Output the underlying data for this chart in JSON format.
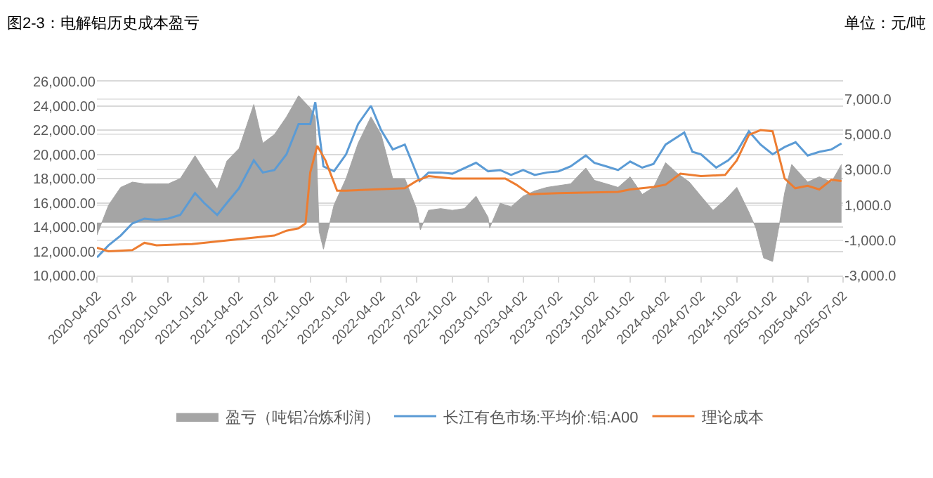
{
  "chart_data": {
    "type": "line",
    "title": "图2-3：电解铝历史成本盈亏",
    "annotations": [
      "单位：元/吨"
    ],
    "xlim": [
      "2020-04-02",
      "2025-07-02"
    ],
    "xticks": [
      "2020-04-02",
      "2020-07-02",
      "2020-10-02",
      "2021-01-02",
      "2021-04-02",
      "2021-07-02",
      "2021-10-02",
      "2022-01-02",
      "2022-04-02",
      "2022-07-02",
      "2022-10-02",
      "2023-01-02",
      "2023-04-02",
      "2023-07-02",
      "2023-10-02",
      "2024-01-02",
      "2024-04-02",
      "2024-07-02",
      "2024-10-02",
      "2025-01-02",
      "2025-04-02",
      "2025-07-02"
    ],
    "ylim": [
      10000,
      26000
    ],
    "yticks": [
      {
        "value": 10000,
        "label": "10,000.00"
      },
      {
        "value": 12000,
        "label": "12,000.00"
      },
      {
        "value": 14000,
        "label": "14,000.00"
      },
      {
        "value": 16000,
        "label": "16,000.00"
      },
      {
        "value": 18000,
        "label": "18,000.00"
      },
      {
        "value": 20000,
        "label": "20,000.00"
      },
      {
        "value": 22000,
        "label": "22,000.00"
      },
      {
        "value": 24000,
        "label": "24,000.00"
      },
      {
        "value": 26000,
        "label": "26,000.00"
      }
    ],
    "y2lim": [
      -3000,
      8000
    ],
    "y2ticks": [
      {
        "value": -3000,
        "label": "-3,000.0"
      },
      {
        "value": -1000,
        "label": "-1,000.0"
      },
      {
        "value": 1000,
        "label": "1,000.0"
      },
      {
        "value": 3000,
        "label": "3,000.0"
      },
      {
        "value": 5000,
        "label": "5,000.0"
      },
      {
        "value": 7000,
        "label": "7,000.0"
      }
    ],
    "grid": "y",
    "legend": "bottom",
    "marker": "none",
    "line_style": "solid",
    "series": [
      {
        "name": "盈亏（吨铝冶炼利润）",
        "type": "area",
        "axis": "y2",
        "color": "#a5a5a5",
        "x": [
          "2020-04-02",
          "2020-05-02",
          "2020-06-02",
          "2020-07-02",
          "2020-08-02",
          "2020-09-02",
          "2020-10-02",
          "2020-11-02",
          "2020-12-10",
          "2021-01-02",
          "2021-02-05",
          "2021-03-02",
          "2021-04-02",
          "2021-05-10",
          "2021-06-02",
          "2021-07-02",
          "2021-08-02",
          "2021-09-02",
          "2021-10-02",
          "2021-10-15",
          "2021-10-25",
          "2021-11-05",
          "2021-12-02",
          "2022-01-02",
          "2022-02-02",
          "2022-03-07",
          "2022-04-02",
          "2022-05-02",
          "2022-06-02",
          "2022-07-02",
          "2022-07-12",
          "2022-08-02",
          "2022-09-02",
          "2022-10-02",
          "2022-11-02",
          "2022-12-02",
          "2023-01-02",
          "2023-01-06",
          "2023-02-02",
          "2023-03-02",
          "2023-04-02",
          "2023-05-02",
          "2023-06-02",
          "2023-07-02",
          "2023-08-02",
          "2023-09-10",
          "2023-10-02",
          "2023-11-02",
          "2023-12-02",
          "2024-01-02",
          "2024-02-02",
          "2024-03-02",
          "2024-04-02",
          "2024-05-02",
          "2024-06-02",
          "2024-07-02",
          "2024-08-02",
          "2024-09-02",
          "2024-10-02",
          "2024-11-02",
          "2024-11-20",
          "2024-12-10",
          "2025-01-02",
          "2025-01-20",
          "2025-02-02",
          "2025-02-20",
          "2025-04-02",
          "2025-05-02",
          "2025-06-02",
          "2025-06-28"
        ],
        "values": [
          -700,
          1000,
          2000,
          2300,
          2200,
          2200,
          2200,
          2500,
          3800,
          3000,
          1900,
          3500,
          4200,
          6700,
          4500,
          5000,
          6000,
          7200,
          6500,
          6000,
          -500,
          -1500,
          1000,
          2500,
          4500,
          6000,
          5000,
          2500,
          2500,
          800,
          -400,
          700,
          800,
          700,
          800,
          1500,
          300,
          -300,
          1100,
          900,
          1500,
          1800,
          2000,
          2100,
          2200,
          3100,
          2400,
          2200,
          2000,
          2600,
          1600,
          2000,
          3400,
          2800,
          2300,
          1500,
          700,
          1300,
          2000,
          600,
          -300,
          -2000,
          -2200,
          0,
          1700,
          3300,
          2300,
          2600,
          2300,
          3300
        ]
      },
      {
        "name": "长江有色市场:平均价:铝:A00",
        "color": "#5b9bd5",
        "x": [
          "2020-04-02",
          "2020-05-02",
          "2020-06-02",
          "2020-07-02",
          "2020-08-02",
          "2020-09-02",
          "2020-10-02",
          "2020-11-02",
          "2020-12-10",
          "2021-01-02",
          "2021-02-05",
          "2021-03-02",
          "2021-04-02",
          "2021-05-10",
          "2021-06-02",
          "2021-07-02",
          "2021-08-02",
          "2021-09-02",
          "2021-10-02",
          "2021-10-15",
          "2021-11-05",
          "2021-12-02",
          "2022-01-02",
          "2022-02-02",
          "2022-03-07",
          "2022-04-02",
          "2022-05-02",
          "2022-06-02",
          "2022-07-10",
          "2022-08-02",
          "2022-09-02",
          "2022-10-02",
          "2022-12-02",
          "2023-01-02",
          "2023-02-02",
          "2023-03-02",
          "2023-04-02",
          "2023-05-02",
          "2023-06-02",
          "2023-07-02",
          "2023-08-02",
          "2023-09-10",
          "2023-10-02",
          "2023-11-02",
          "2023-12-02",
          "2024-01-02",
          "2024-02-02",
          "2024-03-02",
          "2024-04-02",
          "2024-05-20",
          "2024-06-10",
          "2024-07-02",
          "2024-08-10",
          "2024-09-10",
          "2024-10-02",
          "2024-11-02",
          "2024-12-02",
          "2025-01-02",
          "2025-02-02",
          "2025-03-02",
          "2025-04-02",
          "2025-05-02",
          "2025-06-02",
          "2025-06-28"
        ],
        "values": [
          11500,
          12500,
          13300,
          14300,
          14700,
          14600,
          14700,
          15000,
          16800,
          16000,
          15000,
          16000,
          17200,
          19500,
          18500,
          18700,
          20000,
          22500,
          22500,
          24300,
          19000,
          18600,
          20000,
          22500,
          24000,
          22000,
          20400,
          20800,
          17800,
          18500,
          18500,
          18400,
          19300,
          18600,
          18700,
          18300,
          18700,
          18300,
          18500,
          18600,
          19000,
          19900,
          19300,
          19000,
          18700,
          19400,
          18900,
          19200,
          20800,
          21800,
          20200,
          20000,
          18900,
          19500,
          20200,
          21900,
          20800,
          20000,
          20600,
          21000,
          19900,
          20200,
          20400,
          20900
        ]
      },
      {
        "name": "理论成本",
        "color": "#ed7d31",
        "x": [
          "2020-04-02",
          "2020-05-02",
          "2020-07-02",
          "2020-08-02",
          "2020-09-02",
          "2020-12-02",
          "2021-04-02",
          "2021-07-02",
          "2021-08-02",
          "2021-09-02",
          "2021-09-20",
          "2021-10-02",
          "2021-10-20",
          "2021-11-10",
          "2021-12-10",
          "2022-01-02",
          "2022-06-02",
          "2022-07-02",
          "2022-08-02",
          "2022-10-02",
          "2023-01-02",
          "2023-02-15",
          "2023-03-15",
          "2023-04-20",
          "2023-07-02",
          "2023-12-02",
          "2024-01-02",
          "2024-03-02",
          "2024-04-02",
          "2024-05-10",
          "2024-07-02",
          "2024-09-02",
          "2024-10-02",
          "2024-11-02",
          "2024-12-02",
          "2025-01-02",
          "2025-02-02",
          "2025-03-01",
          "2025-04-02",
          "2025-05-02",
          "2025-06-02",
          "2025-06-28"
        ],
        "values": [
          12300,
          12000,
          12100,
          12700,
          12500,
          12600,
          13000,
          13300,
          13700,
          13900,
          14300,
          18500,
          20700,
          19500,
          17000,
          17000,
          17200,
          17800,
          18200,
          18000,
          18000,
          18000,
          17500,
          16700,
          16800,
          16900,
          17100,
          17300,
          17500,
          18400,
          18200,
          18300,
          19500,
          21600,
          22000,
          21900,
          18000,
          17200,
          17400,
          17100,
          17900,
          17800
        ]
      }
    ]
  }
}
